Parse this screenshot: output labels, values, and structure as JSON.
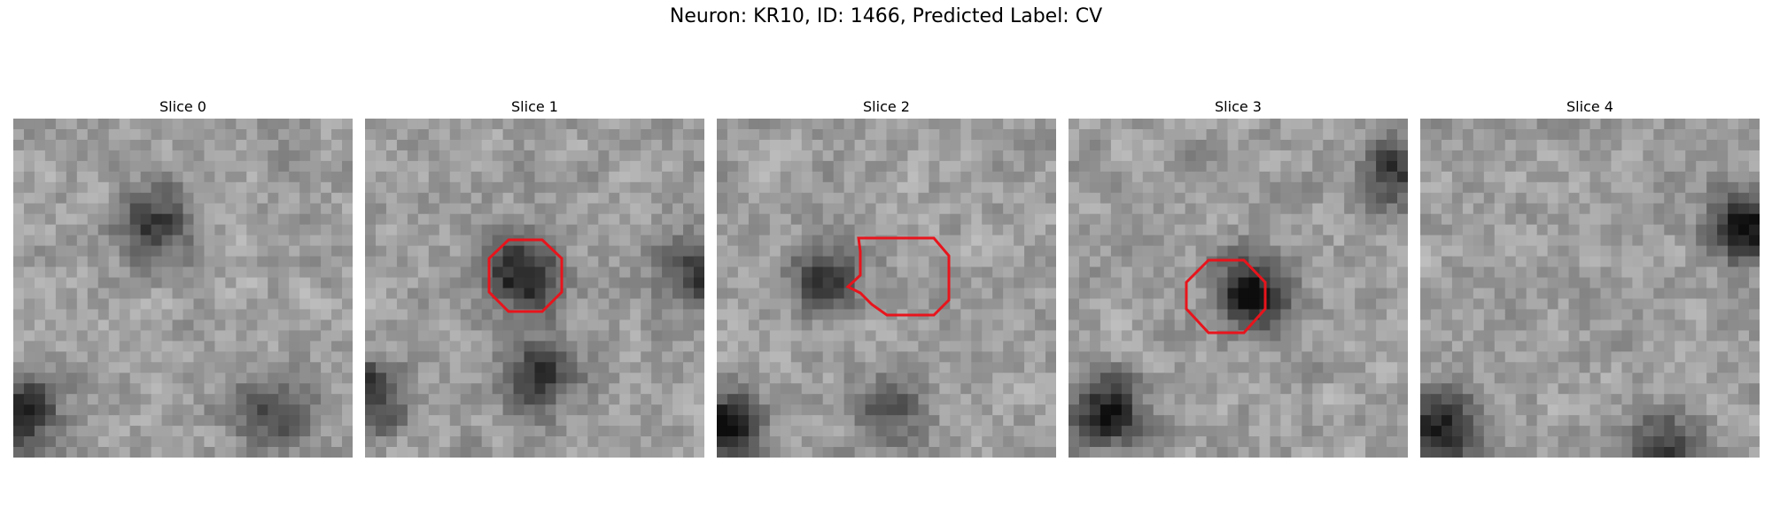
{
  "figure": {
    "title": "Neuron: KR10, ID: 1466, Predicted Label: CV"
  },
  "panels": [
    {
      "title": "Slice 0",
      "has_outline": false,
      "outline_color": "#e8141c",
      "seed": 11,
      "dark_spots": [
        [
          0.4,
          0.3,
          0.9
        ],
        [
          0.0,
          0.85,
          1.1
        ],
        [
          0.75,
          0.85,
          0.8
        ]
      ]
    },
    {
      "title": "Slice 1",
      "has_outline": true,
      "outline_color": "#e8141c",
      "seed": 23,
      "dark_spots": [
        [
          0.45,
          0.45,
          1.2
        ],
        [
          0.0,
          0.8,
          1.0
        ],
        [
          0.5,
          0.75,
          0.9
        ],
        [
          0.97,
          0.45,
          0.9
        ]
      ]
    },
    {
      "title": "Slice 2",
      "has_outline": true,
      "outline_color": "#e8141c",
      "seed": 37,
      "dark_spots": [
        [
          0.3,
          0.45,
          0.8
        ],
        [
          0.0,
          0.9,
          1.4
        ],
        [
          0.5,
          0.85,
          0.6
        ]
      ]
    },
    {
      "title": "Slice 3",
      "has_outline": true,
      "outline_color": "#e8141c",
      "seed": 41,
      "dark_spots": [
        [
          0.53,
          0.5,
          1.3
        ],
        [
          0.1,
          0.85,
          1.1
        ],
        [
          0.95,
          0.15,
          0.9
        ]
      ]
    },
    {
      "title": "Slice 4",
      "has_outline": false,
      "outline_color": "#e8141c",
      "seed": 53,
      "dark_spots": [
        [
          0.95,
          0.3,
          1.3
        ],
        [
          0.05,
          0.9,
          1.1
        ],
        [
          0.7,
          0.95,
          0.8
        ]
      ]
    }
  ]
}
